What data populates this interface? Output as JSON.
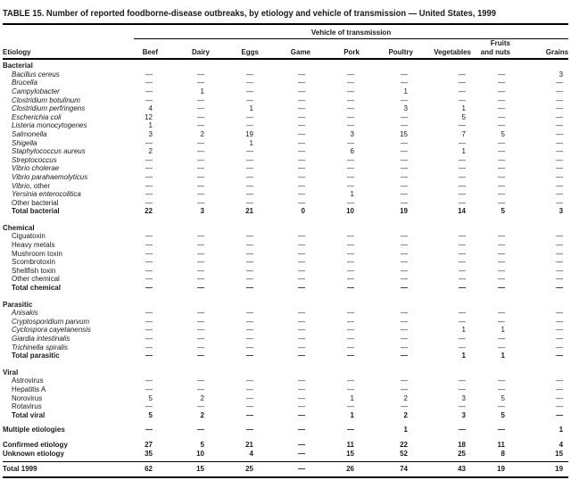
{
  "title": "TABLE 15. Number of reported foodborne-disease outbreaks, by etiology and vehicle of transmission — United States, 1999",
  "colors": {
    "text": "#1a1a1a",
    "rule": "#000000",
    "background": "#ffffff"
  },
  "table": {
    "group_header": "Vehicle of transmission",
    "etiology_header": "Etiology",
    "columns": [
      "Beef",
      "Dairy",
      "Eggs",
      "Game",
      "Pork",
      "Poultry",
      "Vegetables",
      "Fruits\nand nuts",
      "Grains"
    ],
    "dash": "—",
    "sections": [
      {
        "name": "Bacterial",
        "rows": [
          {
            "label": "Bacillus cereus",
            "italic": true,
            "values": [
              "—",
              "—",
              "—",
              "—",
              "—",
              "—",
              "—",
              "—",
              "3"
            ]
          },
          {
            "label": "Brucella",
            "italic": true,
            "values": [
              "—",
              "—",
              "—",
              "—",
              "—",
              "—",
              "—",
              "—",
              "—"
            ]
          },
          {
            "label": "Campylobacter",
            "italic": true,
            "values": [
              "—",
              "1",
              "—",
              "—",
              "—",
              "1",
              "—",
              "—",
              "—"
            ]
          },
          {
            "label": "Clostridium botulinum",
            "italic": true,
            "values": [
              "—",
              "—",
              "—",
              "—",
              "—",
              "—",
              "—",
              "—",
              "—"
            ]
          },
          {
            "label": "Clostridium perfringens",
            "italic": true,
            "values": [
              "4",
              "—",
              "1",
              "—",
              "—",
              "3",
              "1",
              "—",
              "—"
            ]
          },
          {
            "label": "Escherichia coli",
            "italic": true,
            "values": [
              "12",
              "—",
              "—",
              "—",
              "—",
              "—",
              "5",
              "—",
              "—"
            ]
          },
          {
            "label": "Listeria monocytogenes",
            "italic": true,
            "values": [
              "1",
              "—",
              "—",
              "—",
              "—",
              "—",
              "—",
              "—",
              "—"
            ]
          },
          {
            "label": "Salmonella",
            "italic": true,
            "values": [
              "3",
              "2",
              "19",
              "—",
              "3",
              "15",
              "7",
              "5",
              "—"
            ]
          },
          {
            "label": "Shigella",
            "italic": true,
            "values": [
              "—",
              "—",
              "1",
              "—",
              "—",
              "—",
              "—",
              "—",
              "—"
            ]
          },
          {
            "label": "Staphylococcus aureus",
            "italic": true,
            "values": [
              "2",
              "—",
              "—",
              "—",
              "6",
              "—",
              "1",
              "—",
              "—"
            ]
          },
          {
            "label": "Streptococcus",
            "italic": true,
            "values": [
              "—",
              "—",
              "—",
              "—",
              "—",
              "—",
              "—",
              "—",
              "—"
            ]
          },
          {
            "label": "Vibrio cholerae",
            "italic": true,
            "values": [
              "—",
              "—",
              "—",
              "—",
              "—",
              "—",
              "—",
              "—",
              "—"
            ]
          },
          {
            "label": "Vibrio parahaemolyticus",
            "italic": true,
            "values": [
              "—",
              "—",
              "—",
              "—",
              "—",
              "—",
              "—",
              "—",
              "—"
            ]
          },
          {
            "label": "Vibrio",
            "suffix": ", other",
            "italic": true,
            "values": [
              "—",
              "—",
              "—",
              "—",
              "—",
              "—",
              "—",
              "—",
              "—"
            ]
          },
          {
            "label": "Yersinia enterocolitica",
            "italic": true,
            "values": [
              "—",
              "—",
              "—",
              "—",
              "1",
              "—",
              "—",
              "—",
              "—"
            ]
          },
          {
            "label": "Other bacterial",
            "italic": false,
            "values": [
              "—",
              "—",
              "—",
              "—",
              "—",
              "—",
              "—",
              "—",
              "—"
            ]
          }
        ],
        "total": {
          "label": "Total bacterial",
          "italic": false,
          "bold": true,
          "values": [
            "22",
            "3",
            "21",
            "0",
            "10",
            "19",
            "14",
            "5",
            "3"
          ]
        }
      },
      {
        "name": "Chemical",
        "rows": [
          {
            "label": "Ciguatoxin",
            "italic": false,
            "values": [
              "—",
              "—",
              "—",
              "—",
              "—",
              "—",
              "—",
              "—",
              "—"
            ]
          },
          {
            "label": "Heavy metals",
            "italic": false,
            "values": [
              "—",
              "—",
              "—",
              "—",
              "—",
              "—",
              "—",
              "—",
              "—"
            ]
          },
          {
            "label": "Mushroom toxin",
            "italic": false,
            "values": [
              "—",
              "—",
              "—",
              "—",
              "—",
              "—",
              "—",
              "—",
              "—"
            ]
          },
          {
            "label": "Scombrotoxin",
            "italic": false,
            "values": [
              "—",
              "—",
              "—",
              "—",
              "—",
              "—",
              "—",
              "—",
              "—"
            ]
          },
          {
            "label": "Shellfish toxin",
            "italic": false,
            "values": [
              "—",
              "—",
              "—",
              "—",
              "—",
              "—",
              "—",
              "—",
              "—"
            ]
          },
          {
            "label": "Other chemical",
            "italic": false,
            "values": [
              "—",
              "—",
              "—",
              "—",
              "—",
              "—",
              "—",
              "—",
              "—"
            ]
          }
        ],
        "total": {
          "label": "Total chemical",
          "italic": false,
          "bold": true,
          "values": [
            "—",
            "—",
            "—",
            "—",
            "—",
            "—",
            "—",
            "—",
            "—"
          ]
        }
      },
      {
        "name": "Parasitic",
        "rows": [
          {
            "label": "Anisakis",
            "italic": true,
            "values": [
              "—",
              "—",
              "—",
              "—",
              "—",
              "—",
              "—",
              "—",
              "—"
            ]
          },
          {
            "label": "Cryptosporidium parvum",
            "italic": true,
            "values": [
              "—",
              "—",
              "—",
              "—",
              "—",
              "—",
              "—",
              "—",
              "—"
            ]
          },
          {
            "label": "Cyclospora cayetanensis",
            "italic": true,
            "values": [
              "—",
              "—",
              "—",
              "—",
              "—",
              "—",
              "1",
              "1",
              "—"
            ]
          },
          {
            "label": "Giardia intestinalis",
            "italic": true,
            "values": [
              "—",
              "—",
              "—",
              "—",
              "—",
              "—",
              "—",
              "—",
              "—"
            ]
          },
          {
            "label": "Trichinella spiralis",
            "italic": true,
            "values": [
              "—",
              "—",
              "—",
              "—",
              "—",
              "—",
              "—",
              "—",
              "—"
            ]
          }
        ],
        "total": {
          "label": "Total parasitic",
          "italic": false,
          "bold": true,
          "values": [
            "—",
            "—",
            "—",
            "—",
            "—",
            "—",
            "1",
            "1",
            "—"
          ]
        }
      },
      {
        "name": "Viral",
        "rows": [
          {
            "label": "Astrovirus",
            "italic": false,
            "values": [
              "—",
              "—",
              "—",
              "—",
              "—",
              "—",
              "—",
              "—",
              "—"
            ]
          },
          {
            "label": "Hepatitis A",
            "italic": false,
            "values": [
              "—",
              "—",
              "—",
              "—",
              "—",
              "—",
              "—",
              "—",
              "—"
            ]
          },
          {
            "label": "Norovirus",
            "italic": false,
            "values": [
              "5",
              "2",
              "—",
              "—",
              "1",
              "2",
              "3",
              "5",
              "—"
            ]
          },
          {
            "label": "Rotavirus",
            "italic": false,
            "values": [
              "—",
              "—",
              "—",
              "—",
              "—",
              "—",
              "—",
              "—",
              "—"
            ]
          }
        ],
        "total": {
          "label": "Total viral",
          "italic": false,
          "bold": true,
          "values": [
            "5",
            "2",
            "—",
            "—",
            "1",
            "2",
            "3",
            "5",
            "—"
          ]
        }
      }
    ],
    "summary_rows": [
      {
        "label": "Multiple etiologies",
        "kind": "multiple",
        "bold": true,
        "values": [
          "—",
          "—",
          "—",
          "—",
          "—",
          "1",
          "—",
          "—",
          "1"
        ]
      },
      {
        "label": "Confirmed etiology",
        "kind": "confirmed",
        "bold": true,
        "values": [
          "27",
          "5",
          "21",
          "—",
          "11",
          "22",
          "18",
          "11",
          "4"
        ]
      },
      {
        "label": "Unknown etiology",
        "kind": "unknown",
        "bold": true,
        "values": [
          "35",
          "10",
          "4",
          "—",
          "15",
          "52",
          "25",
          "8",
          "15"
        ]
      },
      {
        "label": "Total 1999",
        "kind": "grand_total",
        "bold": true,
        "values": [
          "62",
          "15",
          "25",
          "—",
          "26",
          "74",
          "43",
          "19",
          "19"
        ]
      }
    ]
  }
}
